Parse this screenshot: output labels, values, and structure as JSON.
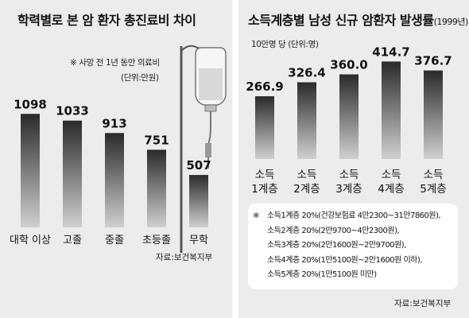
{
  "left": {
    "title": "학력별로 본 암 환자 총진료비 차이",
    "note_line1": "※ 사망 전 1년 동안 의료비",
    "note_line2": "(단위:만원)",
    "source": "자료:보건복지부"
  },
  "right": {
    "title": "소득계층별 남성 신규 암환자 발생률",
    "title_suffix": "(1999년)",
    "unit": "10만명 당 (단위:명)",
    "source": "자료:보건복지부",
    "legend_prefix": "※",
    "legend": [
      "소득1계층 20%(건강보험료 4만2300~31만7860원),",
      "소득2계층 20%(2만9700~4만2300원),",
      "소득3계층 20%(2만1600원~2만9700원),",
      "소득4계층 20%(1만5100원~2만1600원 이하),",
      "소득5계층 20%(1만5100원 미만)"
    ]
  },
  "chart_data": [
    {
      "type": "bar",
      "title": "학력별로 본 암 환자 총진료비 차이",
      "categories": [
        "대학 이상",
        "고졸",
        "중졸",
        "초등졸",
        "무학"
      ],
      "values": [
        1098,
        1033,
        913,
        751,
        507
      ],
      "value_labels": [
        "1098",
        "1033",
        "913",
        "751",
        "507"
      ],
      "ylim": [
        0,
        1200
      ],
      "grid": false,
      "bar_color": "#2a2a2a"
    },
    {
      "type": "bar",
      "title": "소득계층별 남성 신규 암환자 발생률",
      "categories": [
        [
          "소득",
          "1계층"
        ],
        [
          "소득",
          "2계층"
        ],
        [
          "소득",
          "3계층"
        ],
        [
          "소득",
          "4계층"
        ],
        [
          "소득",
          "5계층"
        ]
      ],
      "values": [
        266.9,
        326.4,
        360.0,
        414.7,
        376.7
      ],
      "value_labels": [
        "266.9",
        "326.4",
        "360.0",
        "414.7",
        "376.7"
      ],
      "ylim": [
        0,
        460
      ],
      "grid": false,
      "bar_color": "#2a2a2a"
    }
  ]
}
